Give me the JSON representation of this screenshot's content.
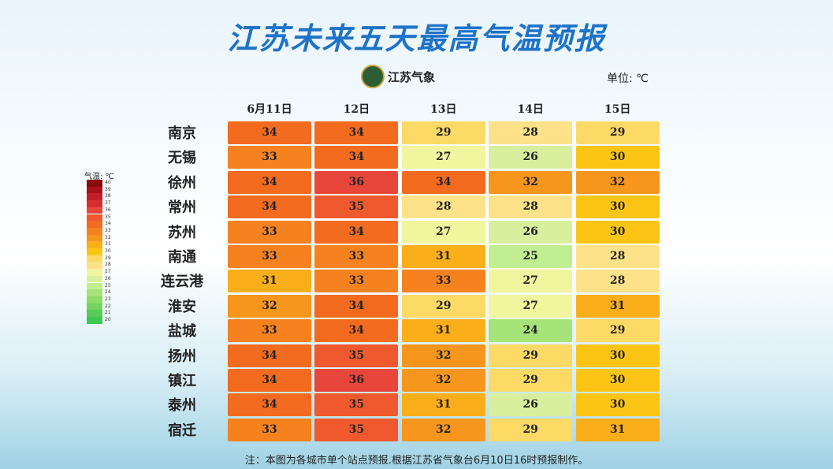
{
  "header": {
    "title": "江苏未来五天最高气温预报",
    "logo": "江苏气象",
    "unit": "单位: ℃"
  },
  "table": {
    "columns": [
      "6月11日",
      "12日",
      "13日",
      "14日",
      "15日"
    ],
    "rows": [
      {
        "name": "南京",
        "values": [
          34,
          34,
          29,
          28,
          29
        ]
      },
      {
        "name": "无锡",
        "values": [
          33,
          34,
          27,
          26,
          30
        ]
      },
      {
        "name": "徐州",
        "values": [
          34,
          36,
          34,
          32,
          32
        ]
      },
      {
        "name": "常州",
        "values": [
          34,
          35,
          28,
          28,
          30
        ]
      },
      {
        "name": "苏州",
        "values": [
          33,
          34,
          27,
          26,
          30
        ]
      },
      {
        "name": "南通",
        "values": [
          33,
          33,
          31,
          25,
          28
        ]
      },
      {
        "name": "连云港",
        "values": [
          31,
          33,
          33,
          27,
          28
        ]
      },
      {
        "name": "淮安",
        "values": [
          32,
          34,
          29,
          27,
          31
        ]
      },
      {
        "name": "盐城",
        "values": [
          33,
          34,
          31,
          24,
          29
        ]
      },
      {
        "name": "扬州",
        "values": [
          34,
          35,
          32,
          29,
          30
        ]
      },
      {
        "name": "镇江",
        "values": [
          34,
          36,
          32,
          29,
          30
        ]
      },
      {
        "name": "泰州",
        "values": [
          34,
          35,
          31,
          26,
          30
        ]
      },
      {
        "name": "宿迁",
        "values": [
          33,
          35,
          32,
          29,
          31
        ]
      }
    ]
  },
  "legend": {
    "title": "气温: ℃",
    "scale": [
      {
        "value": 40,
        "color": "#8b0a0a"
      },
      {
        "value": 39,
        "color": "#a8121a"
      },
      {
        "value": 38,
        "color": "#c21f28"
      },
      {
        "value": 37,
        "color": "#d62e30"
      },
      {
        "value": 36,
        "color": "#e8463a"
      },
      {
        "value": 35,
        "color": "#f0592d"
      },
      {
        "value": 34,
        "color": "#f26b1f"
      },
      {
        "value": 33,
        "color": "#f5821f"
      },
      {
        "value": 32,
        "color": "#f7961d"
      },
      {
        "value": 31,
        "color": "#faae1a"
      },
      {
        "value": 30,
        "color": "#fcc516"
      },
      {
        "value": 29,
        "color": "#fdda66"
      },
      {
        "value": 28,
        "color": "#fde289"
      },
      {
        "value": 27,
        "color": "#f0f59e"
      },
      {
        "value": 26,
        "color": "#d8f09e"
      },
      {
        "value": 25,
        "color": "#c2ee92"
      },
      {
        "value": 24,
        "color": "#a6e47a"
      },
      {
        "value": 23,
        "color": "#8cdc6a"
      },
      {
        "value": 22,
        "color": "#72d45e"
      },
      {
        "value": 21,
        "color": "#58cc56"
      },
      {
        "value": 20,
        "color": "#3ec850"
      }
    ]
  },
  "note": "注：本图为各城市单个站点预报.根据江苏省气象台6月10日16时预报制作。"
}
